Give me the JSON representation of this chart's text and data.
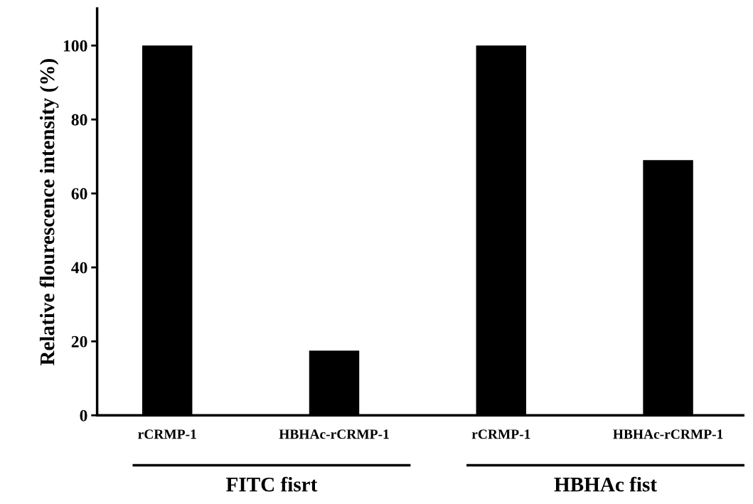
{
  "chart_data": {
    "type": "bar",
    "ylabel": "Relative flourescence intensity (%)",
    "categories": [
      "rCRMP-1",
      "HBHAc-rCRMP-1",
      "rCRMP-1",
      "HBHAc-rCRMP-1"
    ],
    "values": [
      100,
      17.5,
      100,
      69
    ],
    "color": "#000000",
    "ylim": [
      0,
      110
    ],
    "yticks": [
      0,
      20,
      40,
      60,
      80,
      100
    ],
    "grid": false,
    "legend": false,
    "annotations": [
      "FITC fisrt",
      "HBHAc fist"
    ]
  }
}
